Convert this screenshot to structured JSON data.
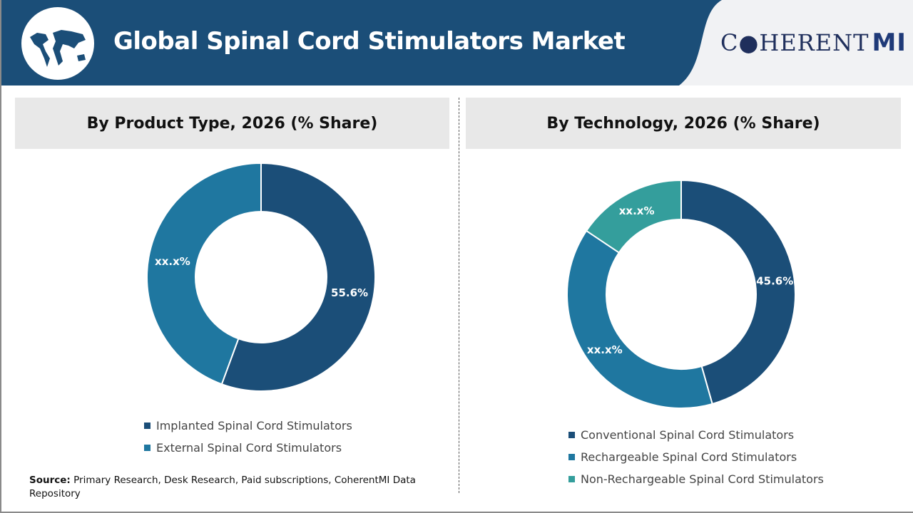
{
  "header": {
    "title": "Global Spinal Cord Stimulators Market",
    "logo_text": "COHERENTMI",
    "logo_main": "C●HERENT",
    "logo_accent": "MI",
    "colors": {
      "band": "#1b4e78",
      "logo_bg": "#f1f2f4"
    }
  },
  "chart_data": [
    {
      "type": "pie",
      "style": "donut",
      "title": "By Product Type, 2026 (% Share)",
      "categories": [
        "Implanted Spinal Cord Stimulators",
        "External Spinal Cord Stimulators"
      ],
      "values": [
        55.6,
        44.4
      ],
      "data_labels": [
        "55.6%",
        "xx.x%"
      ],
      "colors": [
        "#1b4e78",
        "#1f77a0"
      ],
      "legend": "bottom"
    },
    {
      "type": "pie",
      "style": "donut",
      "title": "By Technology, 2026 (% Share)",
      "categories": [
        "Conventional Spinal Cord Stimulators",
        "Rechargeable Spinal Cord Stimulators",
        "Non-Rechargeable Spinal Cord Stimulators"
      ],
      "values": [
        45.6,
        38.8,
        15.6
      ],
      "data_labels": [
        "45.6%",
        "xx.x%",
        "xx.x%"
      ],
      "colors": [
        "#1b4e78",
        "#1f77a0",
        "#349e9c"
      ],
      "legend": "bottom"
    }
  ],
  "source": {
    "label": "Source:",
    "text": " Primary Research, Desk Research, Paid subscriptions, CoherentMI Data Repository"
  }
}
